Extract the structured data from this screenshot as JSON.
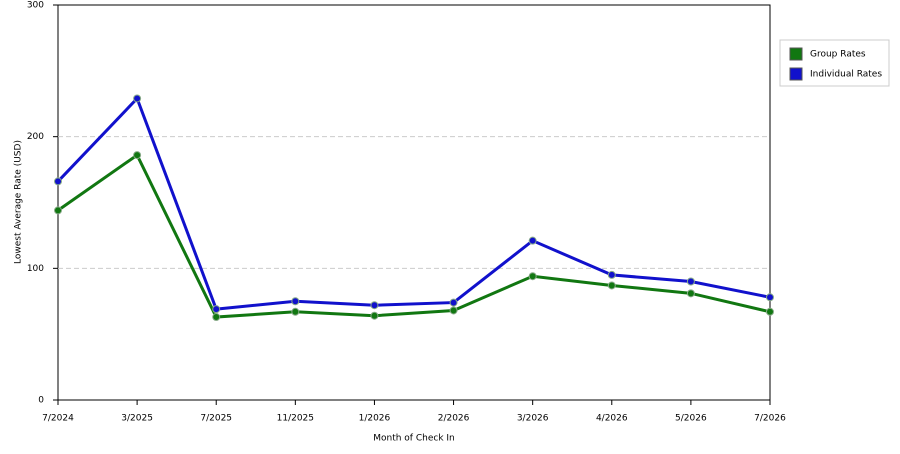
{
  "chart_data": {
    "type": "line",
    "x_label": "Month of Check In",
    "y_label": "Lowest Average Rate (USD)",
    "categories": [
      "7/2024",
      "3/2025",
      "7/2025",
      "11/2025",
      "1/2026",
      "2/2026",
      "3/2026",
      "4/2026",
      "5/2026",
      "7/2026"
    ],
    "series": [
      {
        "name": "Group Rates",
        "color": "#117711",
        "values": [
          144,
          186,
          63,
          67,
          64,
          68,
          94,
          87,
          81,
          67
        ]
      },
      {
        "name": "Individual Rates",
        "color": "#1111cc",
        "values": [
          166,
          229,
          69,
          75,
          72,
          74,
          121,
          95,
          90,
          78
        ]
      }
    ],
    "ylim": [
      0,
      300
    ],
    "yticks": [
      0,
      100,
      200,
      300
    ],
    "grid": true,
    "legend": "top-right"
  }
}
